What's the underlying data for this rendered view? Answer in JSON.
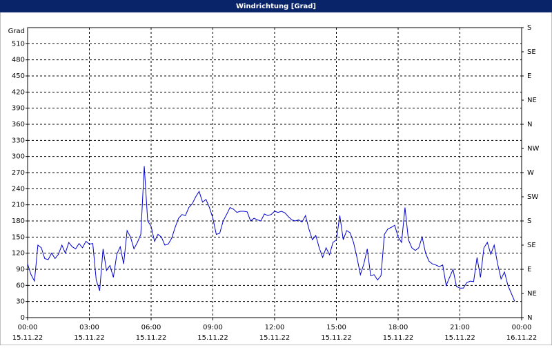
{
  "window_title": "Windrichtung [Grad]",
  "chart_data": {
    "type": "line",
    "y_label": "Grad",
    "xlim": [
      0,
      1440
    ],
    "xticks": [
      {
        "value": 0,
        "label": "00:00"
      },
      {
        "value": 180,
        "label": "03:00"
      },
      {
        "value": 360,
        "label": "06:00"
      },
      {
        "value": 540,
        "label": "09:00"
      },
      {
        "value": 720,
        "label": "12:00"
      },
      {
        "value": 900,
        "label": "15:00"
      },
      {
        "value": 1080,
        "label": "18:00"
      },
      {
        "value": 1260,
        "label": "21:00"
      },
      {
        "value": 1440,
        "label": "00:00"
      }
    ],
    "xtick_dates": [
      "15.11.22",
      "15.11.22",
      "15.11.22",
      "15.11.22",
      "15.11.22",
      "15.11.22",
      "15.11.22",
      "15.11.22",
      "16.11.22"
    ],
    "ylim": [
      0,
      540
    ],
    "yticks": [
      0,
      30,
      60,
      90,
      120,
      150,
      180,
      210,
      240,
      270,
      300,
      330,
      360,
      390,
      420,
      450,
      480,
      510
    ],
    "y2lim": [
      0,
      540
    ],
    "y2ticks": [
      {
        "value": 0,
        "label": "N"
      },
      {
        "value": 45,
        "label": "NE"
      },
      {
        "value": 90,
        "label": "E"
      },
      {
        "value": 135,
        "label": "SE"
      },
      {
        "value": 180,
        "label": "S"
      },
      {
        "value": 225,
        "label": "SW"
      },
      {
        "value": 270,
        "label": "W"
      },
      {
        "value": 315,
        "label": "NW"
      },
      {
        "value": 360,
        "label": "N"
      },
      {
        "value": 405,
        "label": "NE"
      },
      {
        "value": 450,
        "label": "E"
      },
      {
        "value": 495,
        "label": "SE"
      },
      {
        "value": 540,
        "label": "S"
      }
    ],
    "grid": true,
    "color": "#0000cc",
    "x": [
      0,
      10,
      20,
      30,
      40,
      50,
      60,
      70,
      80,
      90,
      100,
      110,
      120,
      130,
      140,
      150,
      160,
      170,
      180,
      190,
      200,
      210,
      220,
      230,
      240,
      250,
      260,
      270,
      280,
      290,
      300,
      310,
      320,
      330,
      340,
      350,
      360,
      370,
      380,
      390,
      400,
      410,
      420,
      430,
      440,
      450,
      460,
      470,
      480,
      490,
      500,
      510,
      520,
      530,
      540,
      550,
      560,
      570,
      580,
      590,
      600,
      610,
      620,
      630,
      640,
      650,
      660,
      670,
      680,
      690,
      700,
      710,
      720,
      730,
      740,
      750,
      760,
      770,
      780,
      790,
      800,
      810,
      820,
      830,
      840,
      850,
      860,
      870,
      880,
      890,
      900,
      910,
      920,
      930,
      940,
      950,
      960,
      970,
      980,
      990,
      1000,
      1010,
      1020,
      1030,
      1040,
      1050,
      1060,
      1070,
      1080,
      1090,
      1100,
      1110,
      1120,
      1130,
      1140,
      1150,
      1160,
      1170,
      1180,
      1190,
      1200,
      1210,
      1220,
      1230,
      1240,
      1250,
      1260,
      1270,
      1280,
      1290,
      1300,
      1310,
      1320,
      1330,
      1340,
      1350,
      1360,
      1370,
      1380,
      1390,
      1400,
      1410,
      1420
    ],
    "values": [
      100,
      80,
      68,
      135,
      130,
      110,
      108,
      120,
      110,
      118,
      135,
      120,
      140,
      132,
      128,
      138,
      130,
      142,
      137,
      138,
      70,
      50,
      128,
      88,
      97,
      75,
      118,
      132,
      100,
      162,
      150,
      128,
      140,
      155,
      282,
      180,
      170,
      142,
      155,
      150,
      135,
      137,
      148,
      168,
      185,
      192,
      190,
      205,
      212,
      225,
      235,
      215,
      220,
      205,
      185,
      155,
      157,
      180,
      192,
      205,
      202,
      196,
      198,
      198,
      197,
      180,
      185,
      182,
      180,
      193,
      190,
      192,
      198,
      196,
      198,
      195,
      188,
      182,
      180,
      182,
      178,
      190,
      165,
      145,
      153,
      130,
      112,
      130,
      117,
      140,
      145,
      190,
      145,
      162,
      158,
      140,
      112,
      80,
      100,
      128,
      78,
      80,
      70,
      78,
      155,
      165,
      168,
      172,
      150,
      140,
      205,
      145,
      130,
      125,
      130,
      150,
      120,
      105,
      100,
      98,
      95,
      98,
      60,
      75,
      90,
      58,
      55,
      55,
      65,
      68,
      67,
      112,
      75,
      130,
      140,
      118,
      135,
      100,
      72,
      85,
      60,
      45,
      30
    ]
  }
}
